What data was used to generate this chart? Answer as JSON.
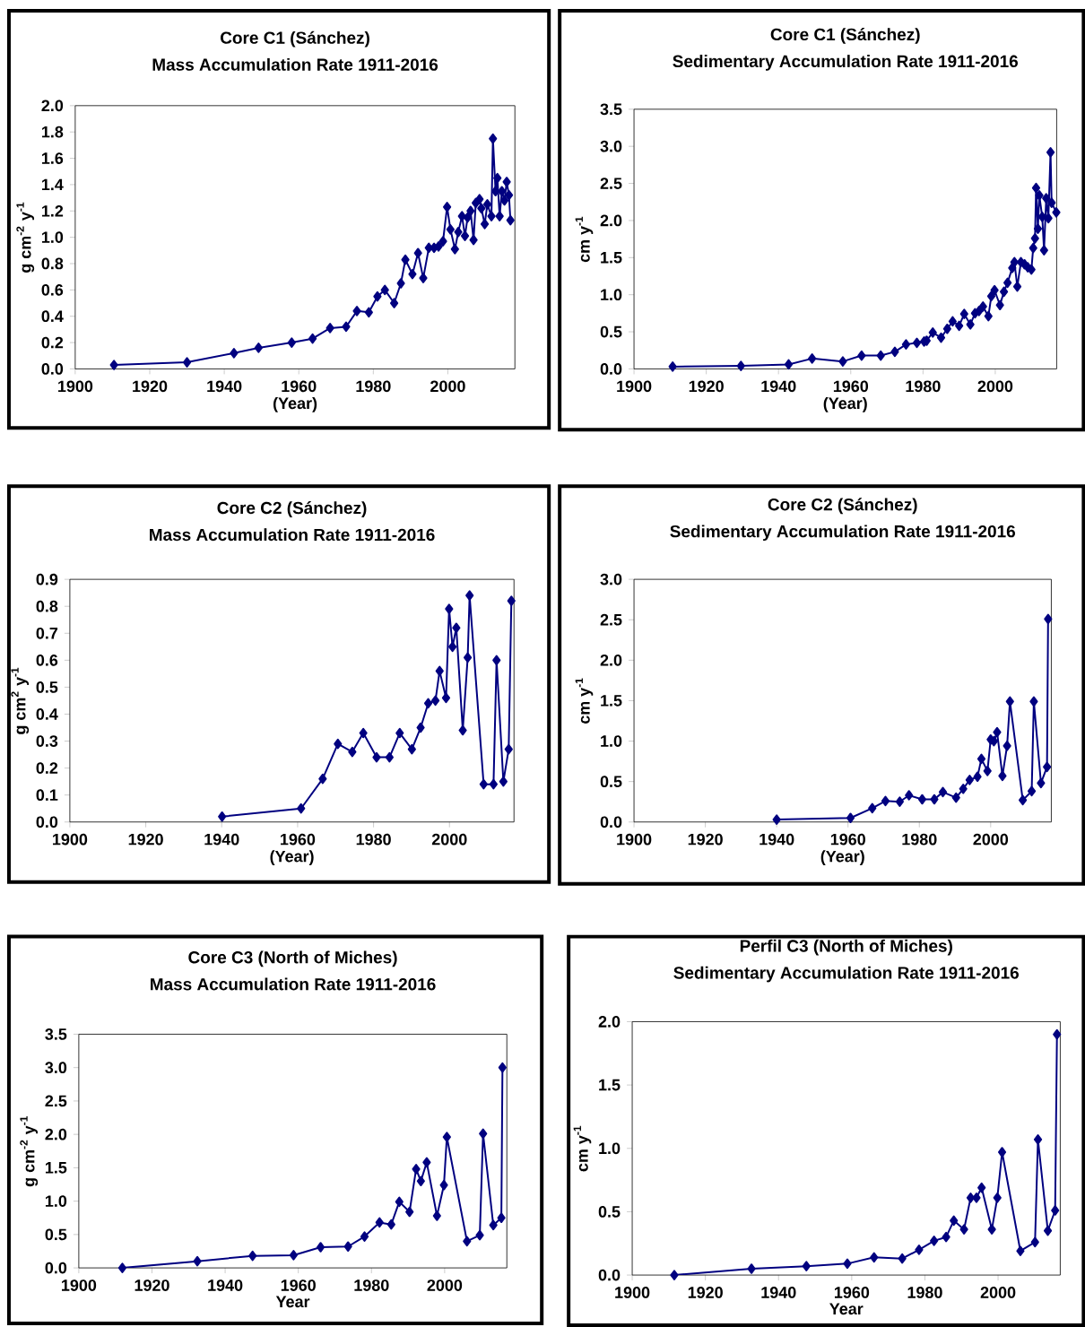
{
  "chart_data": [
    {
      "type": "line",
      "title": "Core C1 (Sánchez)",
      "subtitle": "Mass Accumulation  Rate 1911-2016",
      "xlabel": "(Year)",
      "ylabel": "g cm$^{-2}$ y$^{-1}$",
      "color": "#000080",
      "marker": "diamond",
      "line_style": "solid",
      "x": [
        1910.4,
        1930,
        1942.6,
        1949.2,
        1958.1,
        1963.7,
        1968.4,
        1972.7,
        1975.6,
        1978.8,
        1981.1,
        1983.1,
        1985.6,
        1987.4,
        1988.6,
        1990.5,
        1992.0,
        1993.4,
        1994.9,
        1996.3,
        1997.5,
        1998.7,
        1999.8,
        2000.7,
        2001.9,
        2002.8,
        2003.8,
        2004.6,
        2005.3,
        2006.1,
        2006.9,
        2007.5,
        2008.5,
        2009.0,
        2009.9,
        2010.6,
        2011.7,
        2012.1,
        2012.8,
        2013.3,
        2013.9,
        2014.5,
        2015.2,
        2015.8,
        2016.4,
        2016.8
      ],
      "values": [
        0.03,
        0.05,
        0.12,
        0.16,
        0.2,
        0.23,
        0.31,
        0.32,
        0.44,
        0.43,
        0.55,
        0.6,
        0.5,
        0.65,
        0.83,
        0.72,
        0.88,
        0.69,
        0.92,
        0.92,
        0.93,
        0.97,
        1.23,
        1.06,
        0.91,
        1.04,
        1.16,
        1.01,
        1.15,
        1.2,
        0.98,
        1.26,
        1.29,
        1.22,
        1.1,
        1.25,
        1.16,
        1.75,
        1.35,
        1.45,
        1.16,
        1.35,
        1.28,
        1.42,
        1.32,
        1.13
      ],
      "xlim": [
        1900,
        2018
      ],
      "ylim": [
        0,
        2.0
      ],
      "xticks": [
        1900,
        1920,
        1940,
        1960,
        1980,
        2000
      ],
      "yticks": [
        {
          "value": 0,
          "label": "0.0"
        },
        0.2,
        0.4,
        0.6,
        0.8,
        {
          "value": 1,
          "label": "1.0"
        },
        1.2,
        1.4,
        1.6,
        1.8,
        {
          "value": 2,
          "label": "2.0"
        }
      ]
    },
    {
      "type": "line",
      "title": "Core C1 (Sánchez)",
      "subtitle": "Sedimentary  Accumulation  Rate 1911-2016",
      "xlabel": "(Year)",
      "ylabel": "cm y$^{-1}$",
      "color": "#000080",
      "marker": "diamond",
      "line_style": "solid",
      "x": [
        1910.7,
        1929.6,
        1942.8,
        1949.3,
        1957.8,
        1963.0,
        1968.3,
        1972.2,
        1975.3,
        1978.3,
        1980.3,
        1981.0,
        1982.7,
        1985.0,
        1986.7,
        1988.2,
        1990.0,
        1991.4,
        1993.1,
        1994.4,
        1995.5,
        1996.6,
        1998.1,
        1998.9,
        1999.8,
        2001.3,
        2002.4,
        2003.4,
        2004.7,
        2005.3,
        2006.1,
        2007.1,
        2008.1,
        2009.0,
        2010.0,
        2010.5,
        2011.0,
        2011.3,
        2011.8,
        2012.2,
        2013.0,
        2013.5,
        2014.1,
        2014.7,
        2015.3,
        2015.6,
        2016.3,
        2016.9
      ],
      "values": [
        0.03,
        0.04,
        0.06,
        0.14,
        0.1,
        0.18,
        0.18,
        0.23,
        0.33,
        0.35,
        0.37,
        0.38,
        0.49,
        0.42,
        0.54,
        0.64,
        0.58,
        0.74,
        0.6,
        0.75,
        0.78,
        0.84,
        0.71,
        0.98,
        1.06,
        0.86,
        1.04,
        1.16,
        1.36,
        1.44,
        1.11,
        1.44,
        1.41,
        1.37,
        1.34,
        1.63,
        1.76,
        2.44,
        1.89,
        2.34,
        2.05,
        1.6,
        2.3,
        2.03,
        2.92,
        2.24,
        null,
        2.11
      ],
      "xlim": [
        1900,
        2017
      ],
      "ylim": [
        0,
        3.5
      ],
      "xticks": [
        1900,
        1920,
        1940,
        1960,
        1980,
        2000
      ],
      "yticks": [
        {
          "value": 0,
          "label": "0.0"
        },
        0.5,
        {
          "value": 1,
          "label": "1.0"
        },
        1.5,
        {
          "value": 2,
          "label": "2.0"
        },
        2.5,
        {
          "value": 3,
          "label": "3.0"
        },
        3.5
      ]
    },
    {
      "type": "line",
      "title": "Core C2 (Sánchez)",
      "subtitle": "Mass Accumulation  Rate 1911-2016",
      "xlabel": "(Year)",
      "ylabel": "g cm$^{2}$ y$^{-1}$",
      "color": "#000080",
      "marker": "diamond",
      "line_style": "solid",
      "x": [
        1940.1,
        1960.9,
        1966.6,
        1970.6,
        1974.4,
        1977.3,
        1980.8,
        1984.2,
        1986.9,
        1990.1,
        1992.4,
        1994.4,
        1996.3,
        1997.4,
        1999.1,
        1999.9,
        2000.8,
        2001.8,
        2003.5,
        2004.8,
        2005.3,
        2009.0,
        2011.6,
        2012.4,
        2014.2,
        2015.6,
        2016.3
      ],
      "values": [
        0.02,
        0.05,
        0.16,
        0.29,
        0.26,
        0.33,
        0.24,
        0.24,
        0.33,
        0.27,
        0.35,
        0.44,
        0.45,
        0.56,
        0.46,
        0.79,
        0.65,
        0.72,
        0.34,
        0.61,
        0.84,
        0.14,
        0.14,
        0.6,
        0.15,
        0.27,
        0.82
      ],
      "xlim": [
        1900,
        2017
      ],
      "ylim": [
        0,
        0.9
      ],
      "xticks": [
        1900,
        1920,
        1940,
        1960,
        1980,
        2000
      ],
      "yticks": [
        {
          "value": 0,
          "label": "0.0"
        },
        0.1,
        0.2,
        0.3,
        0.4,
        0.5,
        0.6,
        0.7,
        0.8,
        0.9
      ]
    },
    {
      "type": "line",
      "title": "Core C2 (Sánchez)",
      "subtitle": "Sedimentary  Accumulation  Rate 1911-2016",
      "xlabel": "(Year)",
      "ylabel": "cm y$^{-1}$",
      "color": "#000080",
      "marker": "diamond",
      "line_style": "solid",
      "x": [
        1940.0,
        1960.7,
        1966.8,
        1970.5,
        1974.5,
        1977.1,
        1980.8,
        1984.2,
        1986.6,
        1990.3,
        1992.3,
        1994.1,
        1996.3,
        1997.4,
        1999.1,
        2000.0,
        2000.9,
        2001.8,
        2003.3,
        2004.6,
        2005.4,
        2009.0,
        2011.5,
        2012.1,
        2014.1,
        2015.8,
        2016.1
      ],
      "values": [
        0.03,
        0.05,
        0.17,
        0.26,
        0.25,
        0.33,
        0.28,
        0.28,
        0.37,
        0.3,
        0.41,
        0.52,
        0.56,
        0.78,
        0.63,
        1.02,
        1.0,
        1.11,
        0.57,
        0.94,
        1.49,
        0.27,
        0.38,
        1.49,
        0.48,
        0.68,
        2.51
      ],
      "xlim": [
        1900,
        2017
      ],
      "ylim": [
        0,
        3.0
      ],
      "xticks": [
        1900,
        1920,
        1940,
        1960,
        1980,
        2000
      ],
      "yticks": [
        {
          "value": 0,
          "label": "0.0"
        },
        0.5,
        {
          "value": 1,
          "label": "1.0"
        },
        1.5,
        {
          "value": 2,
          "label": "2.0"
        },
        2.5,
        {
          "value": 3,
          "label": "3.0"
        }
      ]
    },
    {
      "type": "line",
      "title": "Core C3 (North of Miches)",
      "subtitle": "Mass Accumulation  Rate 1911-2016",
      "xlabel": "Year",
      "ylabel": "g cm$^{-2}$ y$^{-1}$",
      "color": "#000080",
      "marker": "diamond",
      "line_style": "solid",
      "x": [
        1911.9,
        1932.4,
        1947.5,
        1958.7,
        1966.1,
        1973.6,
        1978.1,
        1982.2,
        1985.4,
        1987.6,
        1990.4,
        1992.2,
        1993.5,
        1995.1,
        1997.9,
        1999.8,
        2000.6,
        2006.1,
        2009.6,
        2010.5,
        2013.3,
        2015.5,
        2015.8
      ],
      "values": [
        0.0,
        0.1,
        0.18,
        0.19,
        0.31,
        0.32,
        0.47,
        0.68,
        0.65,
        0.99,
        0.84,
        1.48,
        1.3,
        1.58,
        0.78,
        1.24,
        1.96,
        0.4,
        0.49,
        2.01,
        0.64,
        0.75,
        3.0
      ],
      "xlim": [
        1900,
        2017
      ],
      "ylim": [
        0,
        3.5
      ],
      "xticks": [
        1900,
        1920,
        1940,
        1960,
        1980,
        2000
      ],
      "yticks": [
        {
          "value": 0,
          "label": "0.0"
        },
        0.5,
        {
          "value": 1,
          "label": "1.0"
        },
        1.5,
        {
          "value": 2,
          "label": "2.0"
        },
        2.5,
        {
          "value": 3,
          "label": "3.0"
        },
        3.5
      ]
    },
    {
      "type": "line",
      "title": "Perfil C3 (North of Miches)",
      "subtitle": "Sedimentary  Accumulation  Rate 1911-2016",
      "xlabel": "Year",
      "ylabel": "cm y$^{-1}$",
      "color": "#000080",
      "marker": "diamond",
      "line_style": "solid",
      "x": [
        1911.5,
        1932.6,
        1947.6,
        1958.8,
        1966.1,
        1973.8,
        1978.4,
        1982.5,
        1985.8,
        1987.9,
        1990.7,
        1992.5,
        1994.1,
        1995.5,
        1998.3,
        1999.8,
        2001.1,
        2006.1,
        2010.1,
        2010.9,
        2013.6,
        2015.6,
        2016.1
      ],
      "values": [
        0.0,
        0.05,
        0.07,
        0.09,
        0.14,
        0.13,
        0.2,
        0.27,
        0.3,
        0.43,
        0.36,
        0.61,
        0.61,
        0.69,
        0.36,
        0.61,
        0.97,
        0.19,
        0.26,
        1.07,
        0.35,
        0.51,
        1.9
      ],
      "xlim": [
        1900,
        2017
      ],
      "ylim": [
        0,
        2.0
      ],
      "xticks": [
        1900,
        1920,
        1940,
        1960,
        1980,
        2000
      ],
      "yticks": [
        {
          "value": 0,
          "label": "0.0"
        },
        0.5,
        {
          "value": 1,
          "label": "1.0"
        },
        1.5,
        {
          "value": 2,
          "label": "2.0"
        }
      ]
    }
  ]
}
